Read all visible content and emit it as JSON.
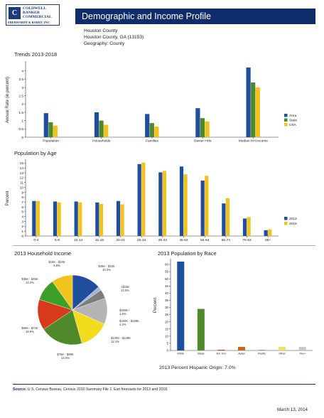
{
  "header": {
    "logo": {
      "mark": "C",
      "lines": [
        "COLDWELL",
        "BANKER",
        "COMMERCIAL"
      ],
      "sub": "EBERHARDT & BARRY, INC."
    },
    "title": "Demographic and Income Profile",
    "info": [
      "Houston County",
      "Houston County, GA (13153)",
      "Geography: County"
    ]
  },
  "colors": {
    "area": "#1f4e9c",
    "state": "#4e8a2a",
    "usa": "#f2c31d",
    "y2013": "#1f4e9c",
    "y2018": "#f2c31d",
    "title_bar": "#0f2d6b"
  },
  "chart_data": [
    {
      "type": "bar",
      "title": "Trends 2013-2018",
      "ylabel": "Annual Rate (in percent)",
      "ylim": [
        0,
        4.5
      ],
      "yticks": [
        "0",
        "0.5",
        "1",
        "1.5",
        "2",
        "2.5",
        "3",
        "3.5",
        "4"
      ],
      "categories": [
        "Population",
        "Households",
        "Families",
        "Owner HHs",
        "Median HH Income"
      ],
      "series": [
        {
          "name": "Area",
          "values": [
            1.45,
            1.5,
            1.4,
            1.75,
            4.2
          ]
        },
        {
          "name": "State",
          "values": [
            0.9,
            1.0,
            0.85,
            1.15,
            3.3
          ]
        },
        {
          "name": "USA",
          "values": [
            0.7,
            0.75,
            0.65,
            0.95,
            3.0
          ]
        }
      ],
      "legend": "right"
    },
    {
      "type": "bar",
      "title": "Population by Age",
      "ylabel": "Percent",
      "ylim": [
        0,
        15.5
      ],
      "yticks": [
        "0",
        "1",
        "2",
        "3",
        "4",
        "5",
        "6",
        "7",
        "8",
        "9",
        "10",
        "11",
        "12",
        "13",
        "14",
        "15"
      ],
      "categories": [
        "0-4",
        "5-9",
        "10-14",
        "15-19",
        "20-24",
        "25-34",
        "35-44",
        "45-54",
        "55-64",
        "65-74",
        "75-84",
        "85+"
      ],
      "series": [
        {
          "name": "2013",
          "values": [
            7.2,
            7.1,
            7.1,
            6.9,
            7.2,
            14.8,
            13.1,
            14.3,
            11.4,
            6.7,
            3.6,
            1.2
          ]
        },
        {
          "name": "2018",
          "values": [
            7.2,
            6.9,
            6.9,
            6.6,
            6.5,
            15.1,
            13.4,
            12.7,
            12.4,
            7.8,
            3.9,
            1.4
          ]
        }
      ],
      "legend": "right"
    },
    {
      "type": "pie",
      "title": "2013 Household Income",
      "slices": [
        {
          "label": "<$15K",
          "value": 13.5,
          "color": "#1f4e9c"
        },
        {
          "label": "$200K+",
          "value": 1.8,
          "color": "#a8b4d6"
        },
        {
          "label": "$150K - $199K",
          "value": 4.2,
          "color": "#7d7d7d"
        },
        {
          "label": "$100K - $149K",
          "value": 12.1,
          "color": "#b4b4b4"
        },
        {
          "label": "$75K - $99K",
          "value": 14.0,
          "color": "#f2dc1d"
        },
        {
          "label": "$50K - $74K",
          "value": 19.9,
          "color": "#4e8a2a"
        },
        {
          "label": "$35K - $49K",
          "value": 14.3,
          "color": "#d63a1a"
        },
        {
          "label": "$25K - $34K",
          "value": 10.3,
          "color": "#3e9e2a"
        },
        {
          "label": "$15K - $24K",
          "value": 9.8,
          "color": "#f2c31d"
        }
      ],
      "labels": [
        {
          "name": "$15K - $24K",
          "pct": "9.8%"
        },
        {
          "name": "<$15K",
          "pct": "13.5%"
        },
        {
          "name": "$200K+",
          "pct": "1.8%"
        },
        {
          "name": "$150K - $199K",
          "pct": "4.2%"
        },
        {
          "name": "$100K - $149K",
          "pct": "12.1%"
        },
        {
          "name": "$75K - $99K",
          "pct": "14.0%"
        },
        {
          "name": "$50K - $74K",
          "pct": "19.9%"
        },
        {
          "name": "$35K - $49K",
          "pct": "14.3%"
        },
        {
          "name": "$25K - $34K",
          "pct": "10.3%"
        }
      ]
    },
    {
      "type": "bar",
      "title": "2013 Population by Race",
      "ylabel": "Percent",
      "ylim": [
        0,
        63
      ],
      "yticks": [
        "0",
        "5",
        "10",
        "15",
        "20",
        "25",
        "30",
        "35",
        "40",
        "45",
        "50",
        "55",
        "60"
      ],
      "categories": [
        "White",
        "Black",
        "Am. Ind.",
        "Asian",
        "Pacific",
        "Other",
        "Two+"
      ],
      "values": [
        62,
        29,
        0.5,
        2.5,
        0.2,
        2.5,
        2.5
      ],
      "colors": [
        "#1f4e9c",
        "#4e8a2a",
        "#c0392b",
        "#d0621e",
        "#6b8fc8",
        "#f2dc6b",
        "#c8c8c8"
      ],
      "footnote": "2013 Percent Hispanic Origin: 7.0%"
    }
  ],
  "footer": {
    "source_label": "Source:",
    "source_text": " U.S. Census Bureau, Census 2010 Summary File 1. Esri forecasts for 2013 and 2018.",
    "date": "March 13, 2014"
  }
}
